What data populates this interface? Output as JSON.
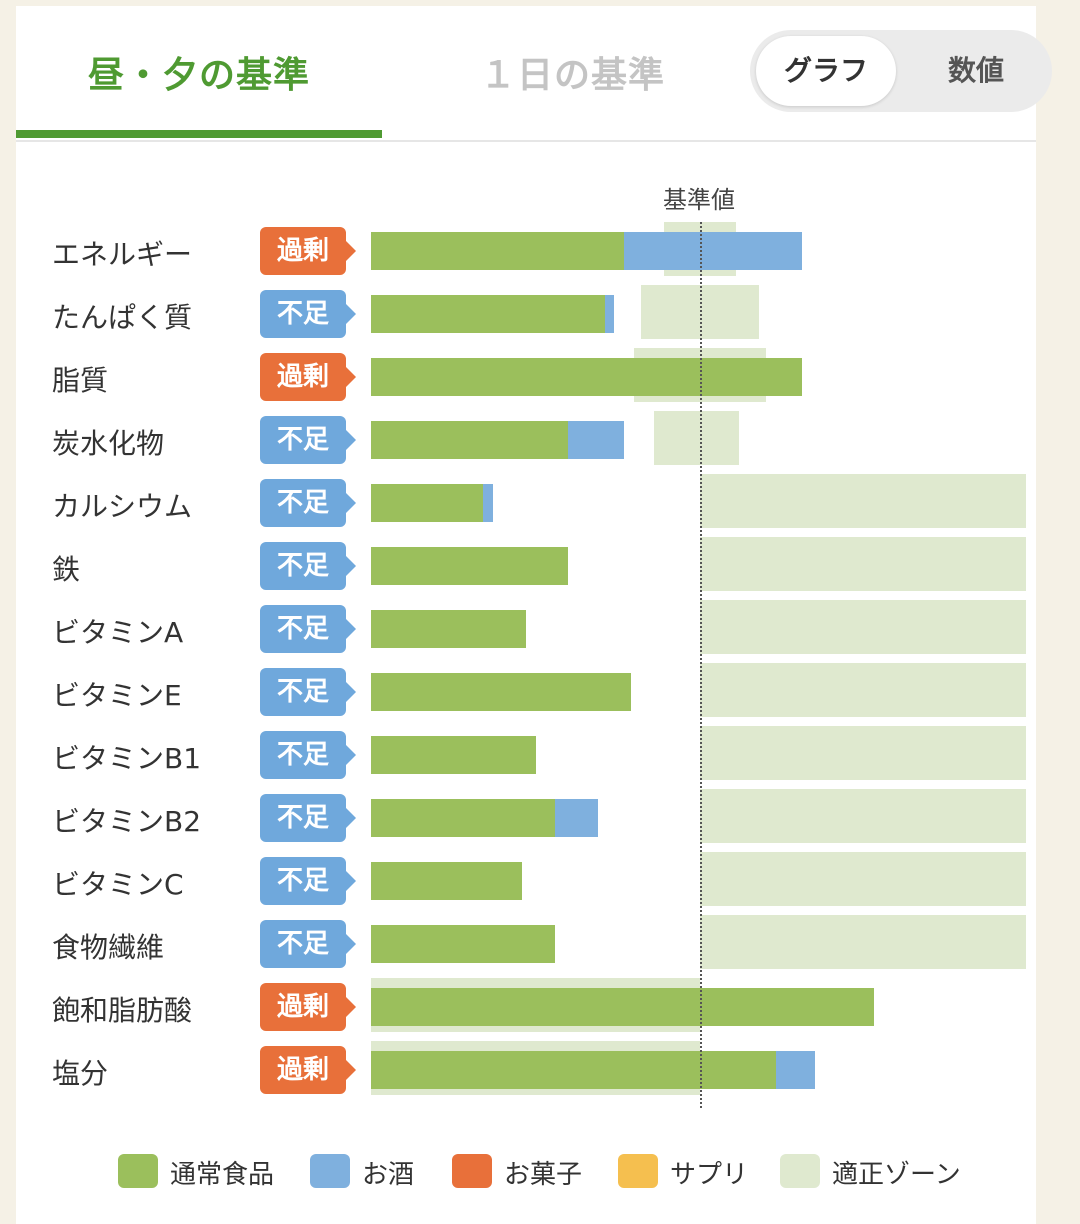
{
  "tabs": [
    {
      "label": "昼・夕の基準",
      "active": true
    },
    {
      "label": "１日の基準",
      "active": false
    }
  ],
  "view_toggle": {
    "options": [
      "グラフ",
      "数値"
    ],
    "selected": "グラフ"
  },
  "colors": {
    "food": "#9bbf5c",
    "alcohol": "#7fb0de",
    "snack": "#e8703a",
    "supplement": "#f5bf4f",
    "zone": "#dfe9cf",
    "accent": "#4f9a32"
  },
  "chart_data": {
    "type": "bar",
    "orientation": "horizontal",
    "stacked": true,
    "reference_label": "基準値",
    "units": "percent of reference (reference = 100)",
    "categories": [
      "エネルギー",
      "たんぱく質",
      "脂質",
      "炭水化物",
      "カルシウム",
      "鉄",
      "ビタミンA",
      "ビタミンE",
      "ビタミンB1",
      "ビタミンB2",
      "ビタミンC",
      "食物繊維",
      "飽和脂肪酸",
      "塩分"
    ],
    "status": [
      "過剰",
      "不足",
      "過剰",
      "不足",
      "不足",
      "不足",
      "不足",
      "不足",
      "不足",
      "不足",
      "不足",
      "不足",
      "過剰",
      "過剰"
    ],
    "series": [
      {
        "name": "通常食品",
        "values": [
          77,
          71,
          131,
          60,
          34,
          60,
          47,
          79,
          50,
          56,
          46,
          56,
          153,
          123
        ]
      },
      {
        "name": "お酒",
        "values": [
          54,
          3,
          0,
          17,
          3,
          0,
          0,
          0,
          0,
          13,
          0,
          0,
          0,
          12
        ]
      },
      {
        "name": "お菓子",
        "values": [
          0,
          0,
          0,
          0,
          0,
          0,
          0,
          0,
          0,
          0,
          0,
          0,
          0,
          0
        ]
      },
      {
        "name": "サプリ",
        "values": [
          0,
          0,
          0,
          0,
          0,
          0,
          0,
          0,
          0,
          0,
          0,
          0,
          0,
          0
        ]
      }
    ],
    "appropriate_zone": [
      [
        89,
        111
      ],
      [
        82,
        118
      ],
      [
        80,
        120
      ],
      [
        86,
        112
      ],
      [
        100,
        199
      ],
      [
        100,
        199
      ],
      [
        100,
        199
      ],
      [
        100,
        199
      ],
      [
        100,
        199
      ],
      [
        100,
        199
      ],
      [
        100,
        199
      ],
      [
        100,
        199
      ],
      [
        0,
        100
      ],
      [
        0,
        100
      ]
    ],
    "legend": [
      "通常食品",
      "お酒",
      "お菓子",
      "サプリ",
      "適正ゾーン"
    ],
    "legend_position": "bottom"
  }
}
